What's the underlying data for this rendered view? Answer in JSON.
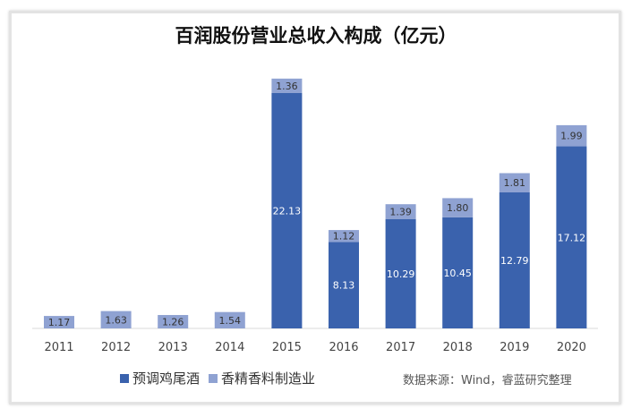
{
  "chart_data": {
    "type": "bar",
    "stacked": true,
    "title": "百润股份营业总收入构成（亿元）",
    "categories": [
      "2011",
      "2012",
      "2013",
      "2014",
      "2015",
      "2016",
      "2017",
      "2018",
      "2019",
      "2020"
    ],
    "series": [
      {
        "name": "预调鸡尾酒",
        "color": "#3a62ad",
        "values": [
          0,
          0,
          0,
          0,
          22.13,
          8.13,
          10.29,
          10.45,
          12.79,
          17.12
        ]
      },
      {
        "name": "香精香料制造业",
        "color": "#8fa2d2",
        "values": [
          1.17,
          1.63,
          1.26,
          1.54,
          1.36,
          1.12,
          1.39,
          1.8,
          1.81,
          1.99
        ]
      }
    ],
    "labels": [
      [
        "",
        "",
        "",
        "",
        "22.13",
        "8.13",
        "10.29",
        "10.45",
        "12.79",
        "17.12"
      ],
      [
        "1.17",
        "1.63",
        "1.26",
        "1.54",
        "1.36",
        "1.12",
        "1.39",
        "1.80",
        "1.81",
        "1.99"
      ]
    ],
    "ylim": [
      0,
      25
    ],
    "grid": false,
    "legend": "bottom-left",
    "source": "数据来源：Wind，睿蓝研究整理"
  }
}
